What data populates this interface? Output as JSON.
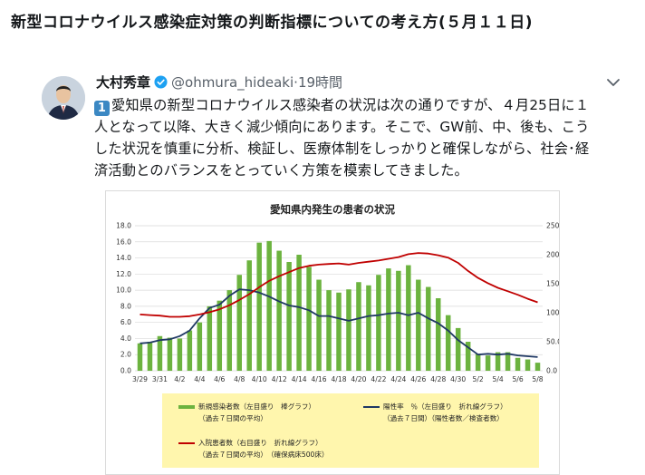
{
  "page": {
    "title": "新型コロナウイルス感染症対策の判断指標についての考え方(５月１１日)"
  },
  "tweet": {
    "author_name": "大村秀章",
    "handle": "@ohmura_hideaki",
    "separator": "·",
    "time": "19時間",
    "number_emoji": "1",
    "body_lines": [
      "愛知県の新型コロナウイルス感染者の状況は次の通りですが、４月25日に１",
      "人となって以降、大きく減少傾向にあります。そこで、GW前、中、後も、こう",
      "した状況を慎重に分析、検証し、医療体制をしっかりと確保しながら、社会･経",
      "済活動とのバランスをとっていく方策を模索してきました。"
    ]
  },
  "colors": {
    "bar": "#6cb33f",
    "positivity_line": "#1f3864",
    "hospitalized_line": "#c00000",
    "legend_bg": "#fff6ad",
    "verified": "#1da1f2"
  },
  "chart_data": {
    "type": "bar",
    "title": "愛知県内発生の患者の状況",
    "dates": [
      "3/29",
      "3/30",
      "3/31",
      "4/1",
      "4/2",
      "4/3",
      "4/4",
      "4/5",
      "4/6",
      "4/7",
      "4/8",
      "4/9",
      "4/10",
      "4/11",
      "4/12",
      "4/13",
      "4/14",
      "4/15",
      "4/16",
      "4/17",
      "4/18",
      "4/19",
      "4/20",
      "4/21",
      "4/22",
      "4/23",
      "4/24",
      "4/25",
      "4/26",
      "4/27",
      "4/28",
      "4/29",
      "4/30",
      "5/1",
      "5/2",
      "5/3",
      "5/4",
      "5/5",
      "5/6",
      "5/7",
      "5/8"
    ],
    "x_tick_labels": [
      "3/29",
      "3/31",
      "4/2",
      "4/4",
      "4/6",
      "4/8",
      "4/10",
      "4/12",
      "4/14",
      "4/16",
      "4/18",
      "4/20",
      "4/22",
      "4/24",
      "4/26",
      "4/28",
      "4/30",
      "5/2",
      "5/4",
      "5/6",
      "5/8"
    ],
    "y_left": {
      "range": [
        0,
        18
      ],
      "ticks": [
        "0.0",
        "2.0",
        "4.0",
        "6.0",
        "8.0",
        "10.0",
        "12.0",
        "14.0",
        "16.0",
        "18.0"
      ]
    },
    "y_right": {
      "range": [
        0,
        250
      ],
      "ticks": [
        "0.0",
        "50.0",
        "100.0",
        "150.0",
        "200.0",
        "250.0"
      ]
    },
    "series": [
      {
        "name": "新規感染者数（左目盛り　棒グラフ）",
        "note": "（過去７日間の平均）",
        "kind": "bar",
        "axis": "left",
        "values": [
          3.4,
          3.6,
          4.3,
          4.1,
          4.0,
          5.0,
          6.0,
          8.0,
          8.7,
          10.0,
          11.9,
          13.7,
          15.9,
          16.1,
          14.9,
          13.5,
          14.4,
          12.9,
          11.3,
          10.0,
          9.7,
          10.1,
          11.0,
          10.6,
          11.9,
          12.7,
          12.4,
          13.1,
          11.3,
          10.4,
          9.0,
          6.9,
          5.3,
          3.6,
          2.1,
          1.9,
          2.3,
          2.3,
          1.6,
          1.4,
          1.0
        ]
      },
      {
        "name": "陽性率　％（左目盛り　折れ線グラフ）",
        "note": "（過去７日間）（陽性者数／検査者数）",
        "kind": "line",
        "axis": "left",
        "values": [
          3.4,
          3.5,
          3.8,
          3.9,
          4.3,
          5.0,
          6.5,
          7.8,
          8.2,
          9.3,
          10.1,
          10.0,
          9.7,
          9.2,
          8.6,
          8.1,
          7.9,
          7.5,
          6.8,
          6.8,
          6.5,
          6.2,
          6.5,
          6.8,
          6.9,
          7.1,
          7.2,
          6.9,
          7.2,
          6.5,
          5.9,
          5.0,
          3.8,
          2.9,
          2.0,
          2.1,
          2.0,
          2.1,
          1.9,
          1.8,
          1.7
        ]
      },
      {
        "name": "入院患者数（右目盛り　折れ線グラフ）",
        "note": "（過去７日間の平均）　（確保病床500床）",
        "kind": "line",
        "axis": "right",
        "values": [
          97,
          96,
          95,
          93,
          93,
          94,
          97,
          101,
          106,
          113,
          122,
          132,
          144,
          155,
          163,
          170,
          177,
          181,
          183,
          184,
          185,
          183,
          186,
          188,
          190,
          193,
          196,
          201,
          203,
          202,
          199,
          195,
          186,
          172,
          160,
          151,
          143,
          137,
          131,
          124,
          118
        ]
      }
    ]
  }
}
